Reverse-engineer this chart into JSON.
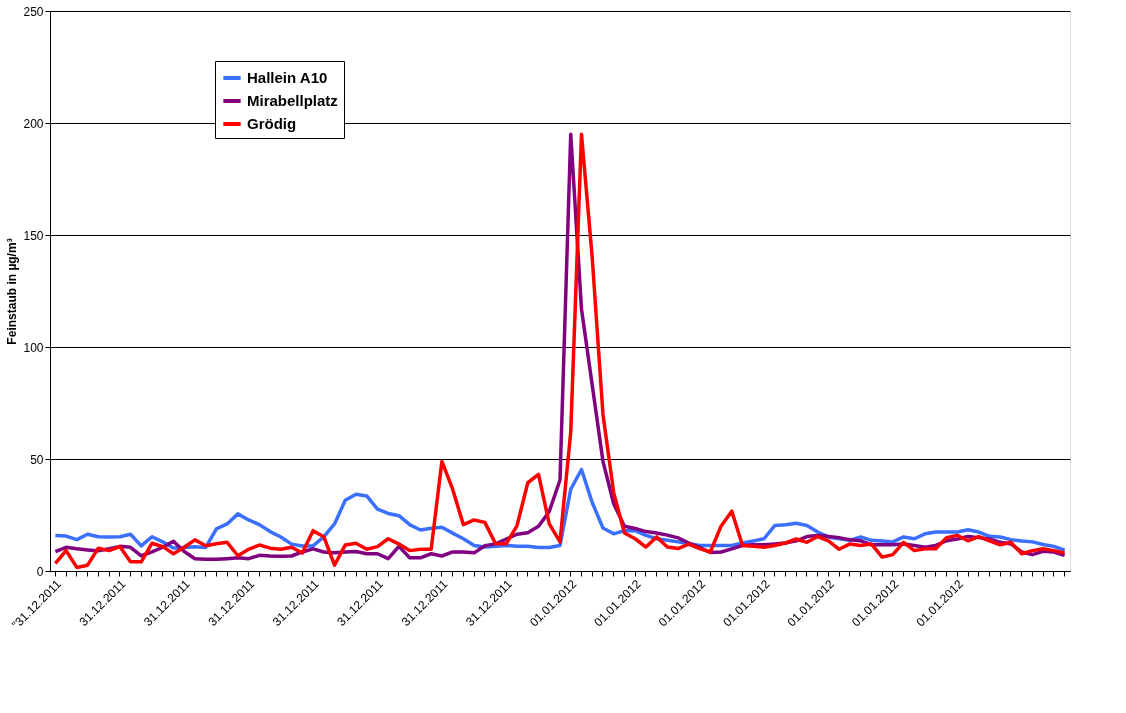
{
  "chart_data": {
    "type": "line",
    "ylabel": "Feinstaub in µg/m³",
    "categories": [
      "\"31.12.2011",
      null,
      null,
      null,
      null,
      null,
      "31.12.2011",
      null,
      null,
      null,
      null,
      null,
      "31.12.2011",
      null,
      null,
      null,
      null,
      null,
      "31.12.2011",
      null,
      null,
      null,
      null,
      null,
      "31.12.2011",
      null,
      null,
      null,
      null,
      null,
      "31.12.2011",
      null,
      null,
      null,
      null,
      null,
      "31.12.2011",
      null,
      null,
      null,
      null,
      null,
      "31.12.2011",
      null,
      null,
      null,
      null,
      null,
      "01.01.2012",
      null,
      null,
      null,
      null,
      null,
      "01.01.2012",
      null,
      null,
      null,
      null,
      null,
      "01.01.2012",
      null,
      null,
      null,
      null,
      null,
      "01.01.2012",
      null,
      null,
      null,
      null,
      null,
      "01.01.2012",
      null,
      null,
      null,
      null,
      null,
      "01.01.2012",
      null,
      null,
      null,
      null,
      null,
      "01.01.2012",
      null,
      null,
      null,
      null,
      null,
      null,
      null,
      null,
      null,
      null
    ],
    "series": [
      {
        "name": "Hallein A10",
        "color": "#3a6fff",
        "values": [
          15.9,
          15.6,
          14,
          16.4,
          15.3,
          15.2,
          15.3,
          16.4,
          11.2,
          15.3,
          13,
          10.3,
          10.5,
          10.8,
          10.5,
          18.8,
          21,
          25.5,
          22.8,
          20.7,
          17.6,
          15.2,
          12,
          11.2,
          11.2,
          15.2,
          21,
          31.6,
          34.3,
          33.5,
          27.6,
          25.7,
          24.7,
          20.7,
          18.3,
          19.1,
          19.5,
          16.9,
          14.4,
          11.4,
          10.7,
          11,
          11.4,
          11,
          11,
          10.5,
          10.5,
          11.4,
          36.5,
          45.3,
          30.6,
          19.2,
          16.6,
          18,
          18,
          15.9,
          14.4,
          13.7,
          13,
          12.2,
          11.4,
          11.4,
          11.4,
          11.4,
          12.5,
          13.4,
          14.4,
          20.3,
          20.6,
          21.3,
          20.3,
          17.4,
          15.2,
          14.4,
          13.7,
          15.2,
          13.7,
          13.4,
          13,
          15.2,
          14.4,
          16.6,
          17.4,
          17.4,
          17.4,
          18.4,
          17.4,
          15.5,
          15.2,
          14,
          13.4,
          13,
          11.8,
          11,
          9.3
        ]
      },
      {
        "name": "Mirabellplatz",
        "color": "#800080",
        "values": [
          8.7,
          10.6,
          9.9,
          9.4,
          9,
          9.9,
          11,
          10.6,
          6.8,
          8.5,
          10.6,
          13.3,
          8.7,
          5.5,
          5.2,
          5.2,
          5.5,
          5.9,
          5.5,
          7,
          6.7,
          6.6,
          6.7,
          8.5,
          9.9,
          8.5,
          8.1,
          8.5,
          8.7,
          7.7,
          7.7,
          5.5,
          11,
          5.9,
          5.9,
          7.7,
          6.7,
          8.5,
          8.5,
          8.1,
          11.3,
          12.1,
          14.3,
          16.4,
          17.1,
          20,
          26.6,
          40.6,
          195,
          117,
          83,
          49,
          30,
          20,
          19,
          17.6,
          17,
          16,
          14.8,
          12.5,
          10.5,
          8.3,
          8.5,
          9.9,
          11.4,
          11.7,
          11.7,
          12.1,
          12.5,
          13.5,
          15.4,
          15.9,
          15.4,
          14.9,
          13.9,
          13.5,
          11.7,
          11.7,
          11.7,
          12.1,
          11.4,
          10.6,
          11.4,
          13.5,
          14.3,
          15.4,
          14.9,
          14.3,
          12.8,
          12.1,
          8.5,
          7.3,
          8.8,
          8.5,
          7
        ]
      },
      {
        "name": "Grödig",
        "color": "#ff0000",
        "values": [
          3.4,
          9.1,
          1.6,
          2.6,
          10.2,
          9.1,
          10.9,
          4.1,
          4.1,
          12.4,
          10.9,
          7.7,
          10.6,
          13.9,
          11.3,
          12.2,
          12.8,
          6.8,
          9.7,
          11.6,
          10.2,
          9.7,
          10.6,
          8,
          18,
          15.3,
          2.6,
          11.6,
          12.4,
          9.7,
          10.9,
          14.4,
          12,
          9.1,
          9.7,
          9.7,
          48.9,
          36.5,
          20.7,
          22.8,
          21.7,
          12.2,
          12.2,
          20.3,
          39.4,
          43.1,
          21,
          13,
          62,
          195,
          140,
          70,
          35,
          17,
          14.4,
          10.7,
          15.2,
          10.7,
          10,
          12,
          10,
          8.5,
          20,
          26.7,
          11.4,
          11,
          10.6,
          11.4,
          12.5,
          14.3,
          12.8,
          15.4,
          13.5,
          9.7,
          12.1,
          11.4,
          12.1,
          6.2,
          7.3,
          12.8,
          9.1,
          9.9,
          9.9,
          14.9,
          15.9,
          13.5,
          15.4,
          13.5,
          11.7,
          12.8,
          7.7,
          9.1,
          9.9,
          9.1,
          8.1
        ]
      }
    ],
    "ylim": [
      0,
      250
    ],
    "yticks": [
      0,
      50,
      100,
      150,
      200,
      250
    ],
    "grid": "y",
    "legend": "top left",
    "marker": "none",
    "line_style": "solid"
  }
}
